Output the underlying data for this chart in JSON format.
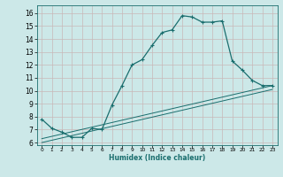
{
  "xlabel": "Humidex (Indice chaleur)",
  "bg_color": "#cce8e8",
  "grid_color": "#b8d8d8",
  "line_color": "#1a6e6e",
  "xlim": [
    -0.5,
    23.5
  ],
  "ylim": [
    5.8,
    16.6
  ],
  "xticks": [
    0,
    1,
    2,
    3,
    4,
    5,
    6,
    7,
    8,
    9,
    10,
    11,
    12,
    13,
    14,
    15,
    16,
    17,
    18,
    19,
    20,
    21,
    22,
    23
  ],
  "yticks": [
    6,
    7,
    8,
    9,
    10,
    11,
    12,
    13,
    14,
    15,
    16
  ],
  "curve1_x": [
    0,
    1,
    2,
    3,
    4,
    5,
    6,
    7,
    8,
    9,
    10,
    11,
    12,
    13,
    14,
    15,
    16,
    17,
    18,
    19,
    20,
    21,
    22,
    23
  ],
  "curve1_y": [
    7.8,
    7.1,
    6.8,
    6.4,
    6.4,
    7.1,
    7.0,
    8.9,
    10.4,
    12.0,
    12.4,
    13.5,
    14.5,
    14.7,
    15.8,
    15.7,
    15.3,
    15.3,
    15.4,
    12.3,
    11.6,
    10.8,
    10.4,
    10.4
  ],
  "line2_x": [
    0,
    23
  ],
  "line2_y": [
    6.3,
    10.4
  ],
  "line3_x": [
    0,
    23
  ],
  "line3_y": [
    6.0,
    10.1
  ]
}
